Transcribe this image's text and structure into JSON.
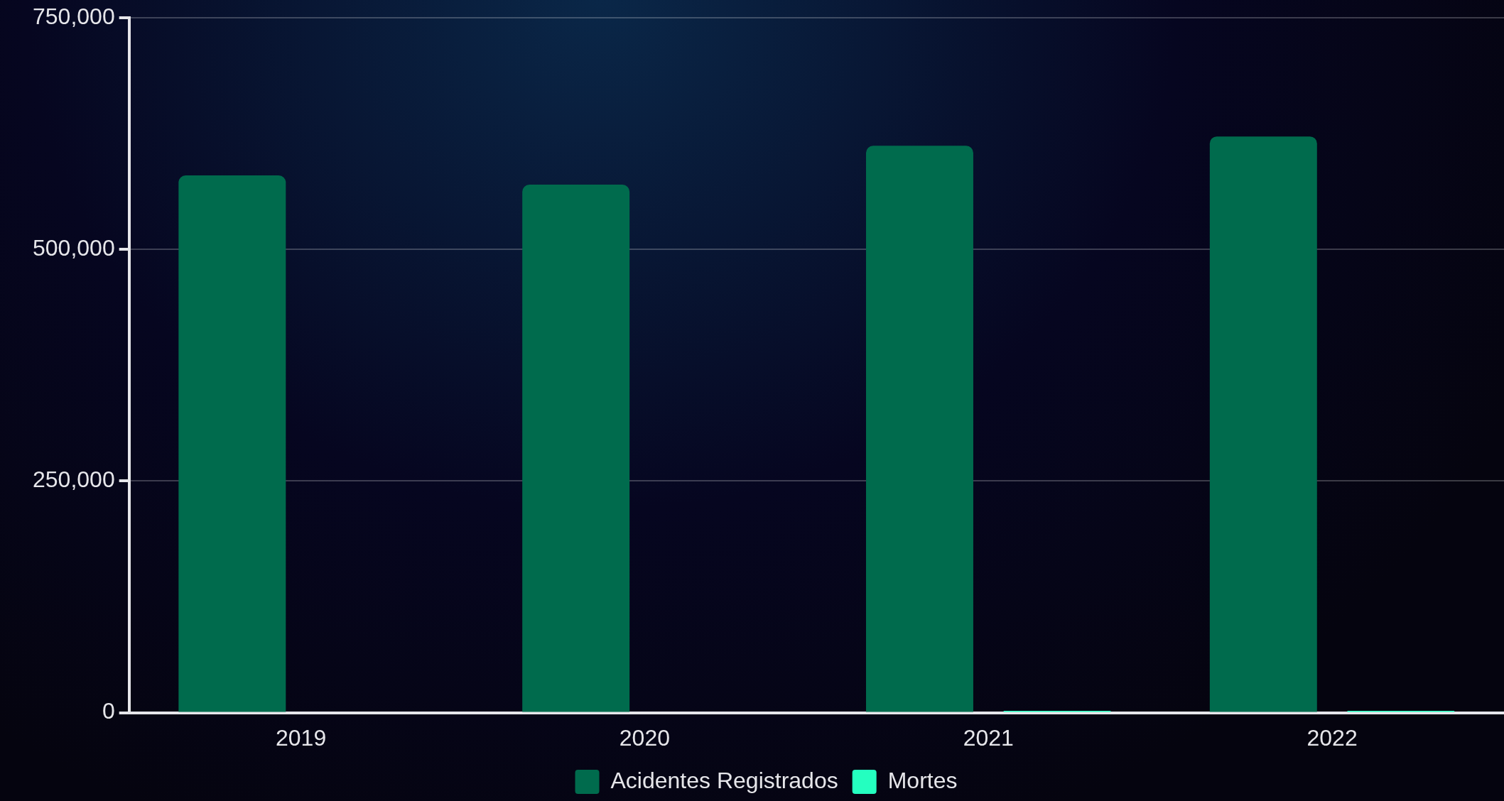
{
  "chart_data": {
    "type": "bar",
    "categories": [
      "2019",
      "2020",
      "2021",
      "2022"
    ],
    "series": [
      {
        "name": "Acidentes Registrados",
        "color": "#006b4d",
        "values": [
          580000,
          570000,
          612000,
          622000
        ]
      },
      {
        "name": "Mortes",
        "color": "#24ffc0",
        "values": [
          null,
          null,
          2000,
          2000
        ]
      }
    ],
    "ylim": [
      0,
      750000
    ],
    "yticks": [
      0,
      {
        "value": 250000,
        "label": "250,000"
      },
      {
        "value": 500000,
        "label": "500,000"
      },
      {
        "value": 750000,
        "label": "750,000"
      }
    ],
    "grid": "y",
    "legend": "bottom"
  }
}
